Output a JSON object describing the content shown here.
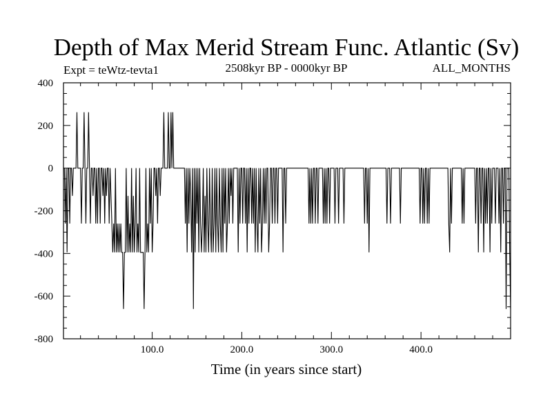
{
  "chart_data": {
    "type": "line",
    "title": "Depth of Max Merid Stream Func. Atlantic (Sv)",
    "subtitle_left": "Expt = teWtz-tevta1",
    "subtitle_center": "2508kyr BP - 0000kyr BP",
    "subtitle_right": "ALL_MONTHS",
    "xlabel": "Time (in years since start)",
    "ylabel": "",
    "xlim": [
      1,
      500
    ],
    "ylim": [
      -800,
      400
    ],
    "x_ticks": [
      100,
      200,
      300,
      400
    ],
    "x_tick_labels": [
      "100.0",
      "200.0",
      "300.0",
      "400.0"
    ],
    "y_ticks": [
      400,
      200,
      0,
      -200,
      -400,
      -600,
      -800
    ],
    "y_tick_labels": [
      "400",
      "200",
      "0",
      "-200",
      "-400",
      "-600",
      "-800"
    ],
    "series": [
      {
        "color": "#000000",
        "x": [
          1,
          2,
          3,
          4,
          5,
          6,
          7,
          8,
          9,
          10,
          11,
          12,
          13,
          14,
          15,
          16,
          17,
          18,
          19,
          20,
          21,
          22,
          23,
          24,
          25,
          26,
          27,
          28,
          29,
          30,
          31,
          32,
          33,
          34,
          35,
          36,
          37,
          38,
          39,
          40,
          41,
          42,
          43,
          44,
          45,
          46,
          47,
          48,
          49,
          50,
          51,
          52,
          53,
          54,
          55,
          56,
          57,
          58,
          59,
          60,
          61,
          62,
          63,
          64,
          65,
          66,
          67,
          68,
          69,
          70,
          71,
          72,
          73,
          74,
          75,
          76,
          77,
          78,
          79,
          80,
          81,
          82,
          83,
          84,
          85,
          86,
          87,
          88,
          89,
          90,
          91,
          92,
          93,
          94,
          95,
          96,
          97,
          98,
          99,
          100,
          101,
          102,
          103,
          104,
          105,
          106,
          107,
          108,
          109,
          110,
          111,
          112,
          113,
          114,
          115,
          116,
          117,
          118,
          119,
          120,
          121,
          122,
          123,
          124,
          125,
          126,
          127,
          128,
          129,
          130,
          131,
          132,
          133,
          134,
          135,
          136,
          137,
          138,
          139,
          140,
          141,
          142,
          143,
          144,
          145,
          146,
          147,
          148,
          149,
          150,
          151,
          152,
          153,
          154,
          155,
          156,
          157,
          158,
          159,
          160,
          161,
          162,
          163,
          164,
          165,
          166,
          167,
          168,
          169,
          170,
          171,
          172,
          173,
          174,
          175,
          176,
          177,
          178,
          179,
          180,
          181,
          182,
          183,
          184,
          185,
          186,
          187,
          188,
          189,
          190,
          191,
          192,
          193,
          194,
          195,
          196,
          197,
          198,
          199,
          200,
          201,
          202,
          203,
          204,
          205,
          206,
          207,
          208,
          209,
          210,
          211,
          212,
          213,
          214,
          215,
          216,
          217,
          218,
          219,
          220,
          221,
          222,
          223,
          224,
          225,
          226,
          227,
          228,
          229,
          230,
          231,
          232,
          233,
          234,
          235,
          236,
          237,
          238,
          239,
          240,
          241,
          242,
          243,
          244,
          245,
          246,
          247,
          248,
          249,
          250,
          251,
          252,
          253,
          254,
          255,
          256,
          257,
          258,
          259,
          260,
          261,
          262,
          263,
          264,
          265,
          266,
          267,
          268,
          269,
          270,
          271,
          272,
          273,
          274,
          275,
          276,
          277,
          278,
          279,
          280,
          281,
          282,
          283,
          284,
          285,
          286,
          287,
          288,
          289,
          290,
          291,
          292,
          293,
          294,
          295,
          296,
          297,
          298,
          299,
          300,
          301,
          302,
          303,
          304,
          305,
          306,
          307,
          308,
          309,
          310,
          311,
          312,
          313,
          314,
          315,
          316,
          317,
          318,
          319,
          320,
          321,
          322,
          323,
          324,
          325,
          326,
          327,
          328,
          329,
          330,
          331,
          332,
          333,
          334,
          335,
          336,
          337,
          338,
          339,
          340,
          341,
          342,
          343,
          344,
          345,
          346,
          347,
          348,
          349,
          350,
          351,
          352,
          353,
          354,
          355,
          356,
          357,
          358,
          359,
          360,
          361,
          362,
          363,
          364,
          365,
          366,
          367,
          368,
          369,
          370,
          371,
          372,
          373,
          374,
          375,
          376,
          377,
          378,
          379,
          380,
          381,
          382,
          383,
          384,
          385,
          386,
          387,
          388,
          389,
          390,
          391,
          392,
          393,
          394,
          395,
          396,
          397,
          398,
          399,
          400,
          401,
          402,
          403,
          404,
          405,
          406,
          407,
          408,
          409,
          410,
          411,
          412,
          413,
          414,
          415,
          416,
          417,
          418,
          419,
          420,
          421,
          422,
          423,
          424,
          425,
          426,
          427,
          428,
          429,
          430,
          431,
          432,
          433,
          434,
          435,
          436,
          437,
          438,
          439,
          440,
          441,
          442,
          443,
          444,
          445,
          446,
          447,
          448,
          449,
          450,
          451,
          452,
          453,
          454,
          455,
          456,
          457,
          458,
          459,
          460,
          461,
          462,
          463,
          464,
          465,
          466,
          467,
          468,
          469,
          470,
          471,
          472,
          473,
          474,
          475,
          476,
          477,
          478,
          479,
          480,
          481,
          482,
          483,
          484,
          485,
          486,
          487,
          488,
          489,
          490,
          491,
          492,
          493,
          494,
          495,
          496,
          497,
          498,
          499,
          500
        ],
        "y": [
          0,
          0,
          -260,
          0,
          -395,
          0,
          0,
          -260,
          0,
          0,
          -130,
          0,
          0,
          0,
          0,
          262,
          0,
          0,
          0,
          0,
          -260,
          0,
          0,
          262,
          0,
          -260,
          0,
          0,
          262,
          0,
          -260,
          0,
          0,
          -130,
          0,
          0,
          -260,
          0,
          -260,
          0,
          0,
          -260,
          0,
          0,
          -130,
          0,
          -260,
          0,
          -130,
          0,
          0,
          -260,
          0,
          -130,
          -260,
          -395,
          -260,
          -395,
          0,
          -395,
          -260,
          -395,
          -260,
          -395,
          -260,
          -395,
          -395,
          -660,
          -395,
          -395,
          0,
          -395,
          -130,
          -395,
          -260,
          -395,
          0,
          -395,
          -130,
          -395,
          -260,
          0,
          -395,
          -260,
          -395,
          0,
          -395,
          -395,
          -395,
          -395,
          -660,
          -395,
          0,
          -395,
          -260,
          -395,
          0,
          -260,
          0,
          -395,
          -260,
          0,
          0,
          -130,
          0,
          -260,
          0,
          0,
          -130,
          0,
          0,
          0,
          262,
          0,
          0,
          0,
          0,
          262,
          0,
          0,
          262,
          0,
          262,
          0,
          0,
          0,
          0,
          0,
          0,
          0,
          0,
          0,
          0,
          0,
          0,
          0,
          -260,
          0,
          -395,
          0,
          -260,
          0,
          -130,
          -395,
          0,
          -660,
          0,
          -395,
          0,
          -260,
          0,
          -395,
          0,
          -260,
          -395,
          -260,
          0,
          -395,
          -130,
          -395,
          0,
          -260,
          -395,
          0,
          -260,
          -395,
          0,
          -395,
          -260,
          0,
          -395,
          0,
          -260,
          -395,
          0,
          -260,
          -395,
          0,
          -395,
          0,
          -260,
          0,
          -395,
          -260,
          0,
          -260,
          0,
          -130,
          0,
          -260,
          0,
          0,
          0,
          0,
          0,
          -395,
          0,
          -260,
          0,
          0,
          -260,
          0,
          0,
          -260,
          0,
          -395,
          0,
          -260,
          0,
          0,
          -260,
          0,
          -260,
          0,
          -395,
          0,
          -260,
          -395,
          0,
          -260,
          0,
          -395,
          -260,
          0,
          -260,
          0,
          -260,
          0,
          0,
          -395,
          -260,
          0,
          0,
          -260,
          0,
          0,
          -260,
          0,
          0,
          -260,
          0,
          0,
          0,
          0,
          0,
          -395,
          0,
          0,
          -260,
          0,
          0,
          0,
          0,
          0,
          0,
          0,
          0,
          0,
          0,
          0,
          0,
          0,
          0,
          0,
          0,
          0,
          0,
          0,
          0,
          0,
          0,
          0,
          0,
          0,
          -260,
          0,
          -260,
          0,
          -260,
          0,
          0,
          -260,
          0,
          0,
          -260,
          0,
          0,
          0,
          0,
          0,
          -260,
          0,
          -260,
          0,
          -260,
          0,
          0,
          -260,
          0,
          0,
          0,
          0,
          0,
          -260,
          0,
          0,
          0,
          -260,
          0,
          0,
          0,
          0,
          0,
          -260,
          0,
          0,
          0,
          0,
          0,
          0,
          0,
          0,
          0,
          0,
          0,
          0,
          0,
          0,
          0,
          0,
          0,
          0,
          0,
          0,
          0,
          0,
          -260,
          0,
          0,
          -260,
          0,
          -395,
          0,
          0,
          0,
          0,
          0,
          0,
          0,
          0,
          0,
          0,
          0,
          0,
          0,
          0,
          0,
          0,
          0,
          0,
          0,
          -260,
          0,
          0,
          0,
          -260,
          0,
          0,
          0,
          0,
          0,
          0,
          0,
          0,
          0,
          0,
          -260,
          0,
          0,
          0,
          0,
          0,
          0,
          0,
          0,
          0,
          0,
          0,
          0,
          0,
          0,
          0,
          0,
          0,
          0,
          0,
          0,
          0,
          -260,
          0,
          0,
          -260,
          0,
          -260,
          0,
          0,
          -260,
          0,
          -260,
          0,
          0,
          0,
          0,
          0,
          0,
          0,
          0,
          0,
          0,
          0,
          0,
          0,
          0,
          0,
          0,
          0,
          0,
          0,
          0,
          0,
          -260,
          -395,
          0,
          -260,
          0,
          0,
          0,
          0,
          0,
          0,
          0,
          0,
          0,
          0,
          0,
          -260,
          0,
          -260,
          0,
          0,
          0,
          0,
          0,
          0,
          0,
          0,
          0,
          0,
          0,
          0,
          -260,
          0,
          0,
          -395,
          0,
          0,
          -260,
          0,
          0,
          -395,
          0,
          -260,
          0,
          -260,
          0,
          0,
          -395,
          0,
          -260,
          0,
          0,
          0,
          -260,
          0,
          0,
          0,
          -260,
          0,
          -395,
          0,
          0,
          -260,
          0,
          0,
          -660,
          0,
          0,
          0,
          -395,
          -660
        ]
      }
    ],
    "grid": false,
    "legend": "none"
  }
}
